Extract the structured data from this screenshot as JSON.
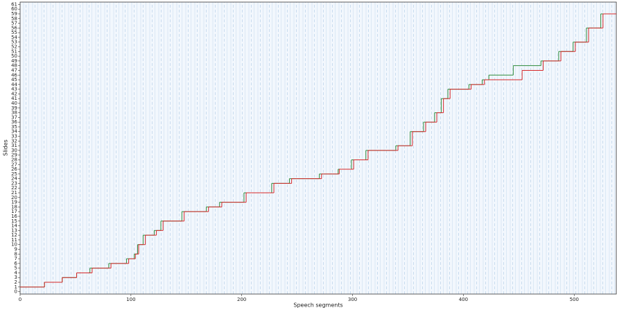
{
  "chart_data": {
    "type": "line",
    "step": "post",
    "xlabel": "Speech segments",
    "ylabel": "Slides",
    "xlim": [
      0,
      538
    ],
    "ylim": [
      -0.5,
      61.5
    ],
    "xticks": [
      0,
      100,
      200,
      300,
      400,
      500
    ],
    "yticks": [
      0,
      1,
      2,
      3,
      4,
      5,
      6,
      7,
      8,
      9,
      10,
      11,
      12,
      13,
      14,
      15,
      16,
      17,
      18,
      19,
      20,
      21,
      22,
      23,
      24,
      25,
      26,
      27,
      28,
      29,
      30,
      31,
      32,
      33,
      34,
      35,
      36,
      37,
      38,
      39,
      40,
      41,
      42,
      43,
      44,
      45,
      46,
      47,
      48,
      49,
      50,
      51,
      52,
      53,
      54,
      55,
      56,
      57,
      58,
      59,
      60,
      61
    ],
    "series": [
      {
        "color": "#2e8b3a",
        "x": [
          0,
          22,
          38,
          51,
          63,
          80,
          96,
          103,
          106,
          111,
          121,
          127,
          146,
          168,
          180,
          202,
          227,
          243,
          270,
          287,
          299,
          312,
          339,
          352,
          364,
          374,
          380,
          386,
          405,
          417,
          423,
          445,
          470,
          486,
          499,
          511,
          524,
          538
        ],
        "values": [
          1,
          2,
          3,
          4,
          5,
          6,
          7,
          8,
          10,
          12,
          13,
          15,
          17,
          18,
          19,
          21,
          23,
          24,
          25,
          26,
          28,
          30,
          31,
          34,
          36,
          38,
          41,
          43,
          44,
          45,
          46,
          48,
          49,
          51,
          53,
          56,
          59,
          59
        ]
      },
      {
        "color": "#d62728",
        "x": [
          0,
          22,
          38,
          51,
          65,
          82,
          98,
          104,
          107,
          113,
          123,
          129,
          148,
          170,
          182,
          204,
          229,
          245,
          272,
          288,
          301,
          314,
          341,
          354,
          366,
          376,
          382,
          388,
          407,
          419,
          453,
          472,
          488,
          501,
          513,
          526,
          538
        ],
        "values": [
          1,
          2,
          3,
          4,
          5,
          6,
          7,
          8,
          10,
          12,
          13,
          15,
          17,
          18,
          19,
          21,
          23,
          24,
          25,
          26,
          28,
          30,
          31,
          34,
          36,
          38,
          41,
          43,
          44,
          45,
          47,
          49,
          51,
          53,
          56,
          59,
          59
        ]
      }
    ]
  }
}
